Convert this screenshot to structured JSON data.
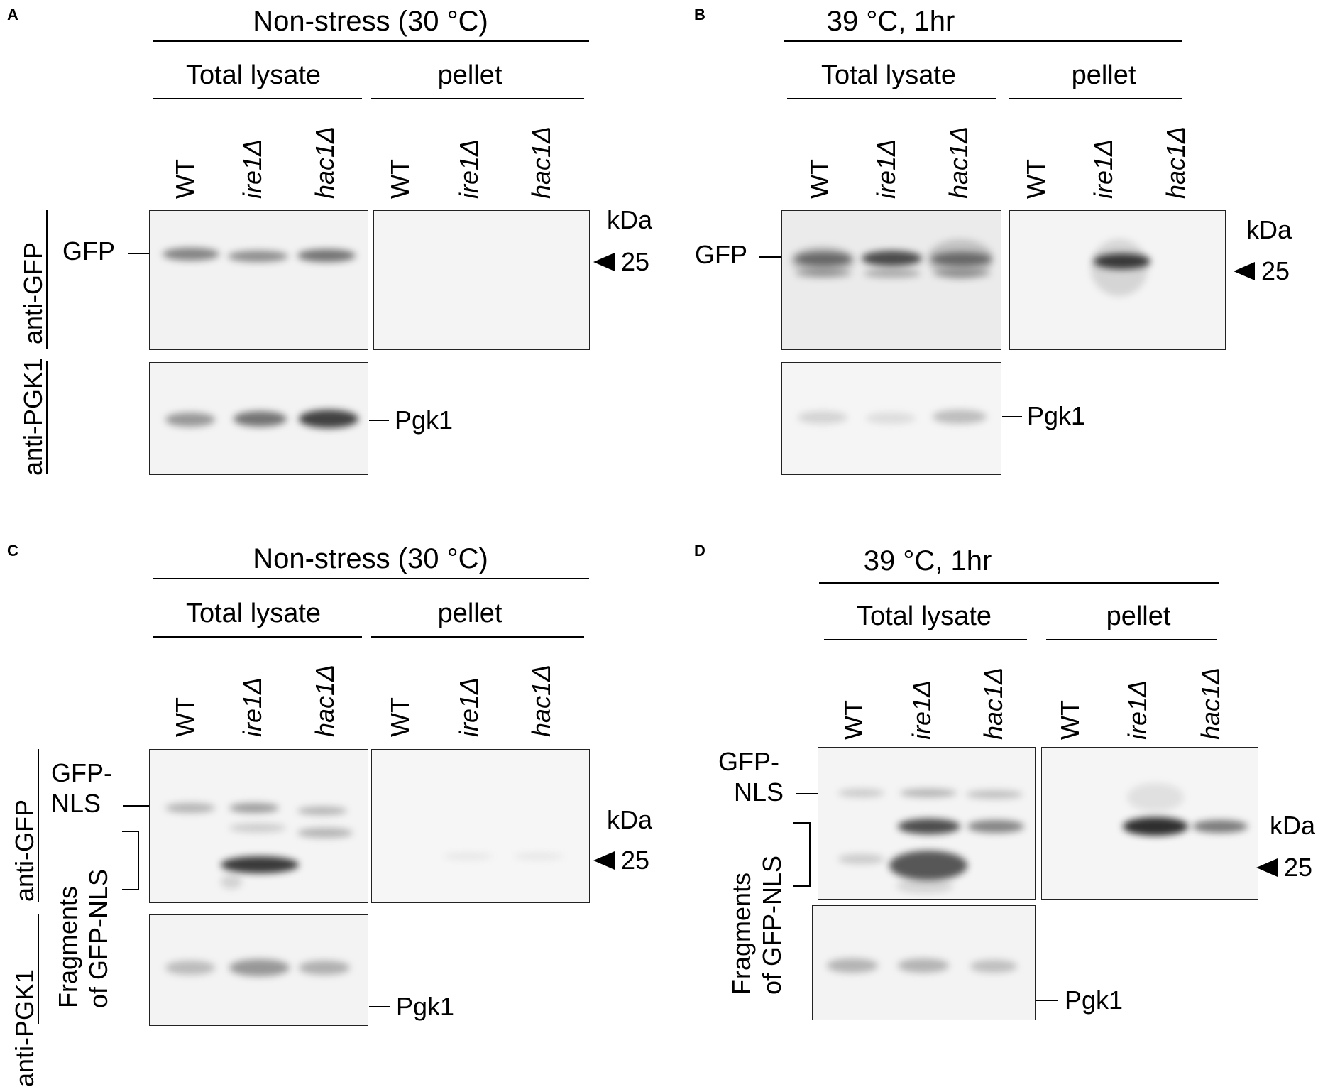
{
  "panels": {
    "A": {
      "letter": "A",
      "condition": "Non-stress (30 °C)",
      "groups": [
        "Total lysate",
        "pellet"
      ],
      "lanes": [
        "WT",
        "ire1Δ",
        "hac1Δ",
        "WT",
        "ire1Δ",
        "hac1Δ"
      ],
      "antibody_top": "anti-GFP",
      "antibody_bottom": "anti-PGK1",
      "band_label_top": "GFP",
      "band_label_bottom": "Pgk1",
      "marker_unit": "kDa",
      "marker_value": "25"
    },
    "B": {
      "letter": "B",
      "condition": "39 °C, 1hr",
      "groups": [
        "Total lysate",
        "pellet"
      ],
      "lanes": [
        "WT",
        "ire1Δ",
        "hac1Δ",
        "WT",
        "ire1Δ",
        "hac1Δ"
      ],
      "band_label_top": "GFP",
      "band_label_bottom": "Pgk1",
      "marker_unit": "kDa",
      "marker_value": "25"
    },
    "C": {
      "letter": "C",
      "condition": "Non-stress (30 °C)",
      "groups": [
        "Total lysate",
        "pellet"
      ],
      "lanes": [
        "WT",
        "ire1Δ",
        "hac1Δ",
        "WT",
        "ire1Δ",
        "hac1Δ"
      ],
      "antibody_top": "anti-GFP",
      "antibody_bottom": "anti-PGK1",
      "band_label_top_1": "GFP-",
      "band_label_top_2": "NLS",
      "fragments_1": "Fragments",
      "fragments_2": "of GFP-NLS",
      "band_label_bottom": "Pgk1",
      "marker_unit": "kDa",
      "marker_value": "25"
    },
    "D": {
      "letter": "D",
      "condition": "39 °C, 1hr",
      "groups": [
        "Total lysate",
        "pellet"
      ],
      "lanes": [
        "WT",
        "ire1Δ",
        "hac1Δ",
        "WT",
        "ire1Δ",
        "hac1Δ"
      ],
      "band_label_top_1": "GFP-",
      "band_label_top_2": "NLS",
      "fragments_1": "Fragments",
      "fragments_2": "of GFP-NLS",
      "band_label_bottom": "Pgk1",
      "marker_unit": "kDa",
      "marker_value": "25"
    }
  }
}
